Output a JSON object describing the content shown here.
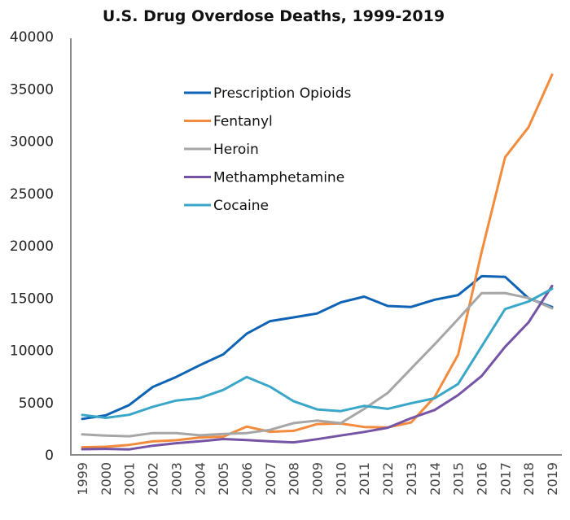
{
  "chart_data": {
    "type": "line",
    "title": "U.S. Drug Overdose Deaths, 1999-2019",
    "xlabel": "",
    "ylabel": "",
    "ylim": [
      0,
      40000
    ],
    "yticks": [
      0,
      5000,
      10000,
      15000,
      20000,
      25000,
      30000,
      35000,
      40000
    ],
    "grid": false,
    "legend_position": "upper-left-inside",
    "x": [
      "1999",
      "2000",
      "2001",
      "2002",
      "2003",
      "2004",
      "2005",
      "2006",
      "2007",
      "2008",
      "2009",
      "2010",
      "2011",
      "2012",
      "2013",
      "2014",
      "2015",
      "2016",
      "2017",
      "2018",
      "2019"
    ],
    "series": [
      {
        "name": "Prescription Opioids",
        "color": "#0e63b5",
        "values": [
          3442,
          3785,
          4770,
          6496,
          7456,
          8577,
          9612,
          11589,
          12796,
          13149,
          13523,
          14583,
          15140,
          14240,
          14145,
          14838,
          15281,
          17087,
          17029,
          14975,
          14139
        ]
      },
      {
        "name": "Fentanyl",
        "color": "#f28b3c",
        "values": [
          730,
          782,
          957,
          1295,
          1400,
          1664,
          1742,
          2707,
          2213,
          2306,
          2946,
          3007,
          2666,
          2628,
          3105,
          5544,
          9580,
          19413,
          28466,
          31335,
          36359
        ]
      },
      {
        "name": "Heroin",
        "color": "#a6a6a6",
        "values": [
          1960,
          1842,
          1779,
          2089,
          2080,
          1878,
          2009,
          2088,
          2399,
          3041,
          3278,
          3036,
          4397,
          5925,
          8257,
          10574,
          12989,
          15469,
          15482,
          14996,
          14019
        ]
      },
      {
        "name": "Methamphetamine",
        "color": "#7553a5",
        "values": [
          547,
          578,
          526,
          876,
          1121,
          1300,
          1516,
          1425,
          1289,
          1201,
          1499,
          1854,
          2196,
          2598,
          3507,
          4298,
          5716,
          7542,
          10333,
          12676,
          16167
        ]
      },
      {
        "name": "Cocaine",
        "color": "#3aa7c8",
        "values": [
          3822,
          3544,
          3833,
          4599,
          5199,
          5443,
          6208,
          7448,
          6512,
          5129,
          4350,
          4183,
          4681,
          4404,
          4944,
          5415,
          6784,
          10375,
          13942,
          14666,
          15883
        ]
      }
    ]
  }
}
